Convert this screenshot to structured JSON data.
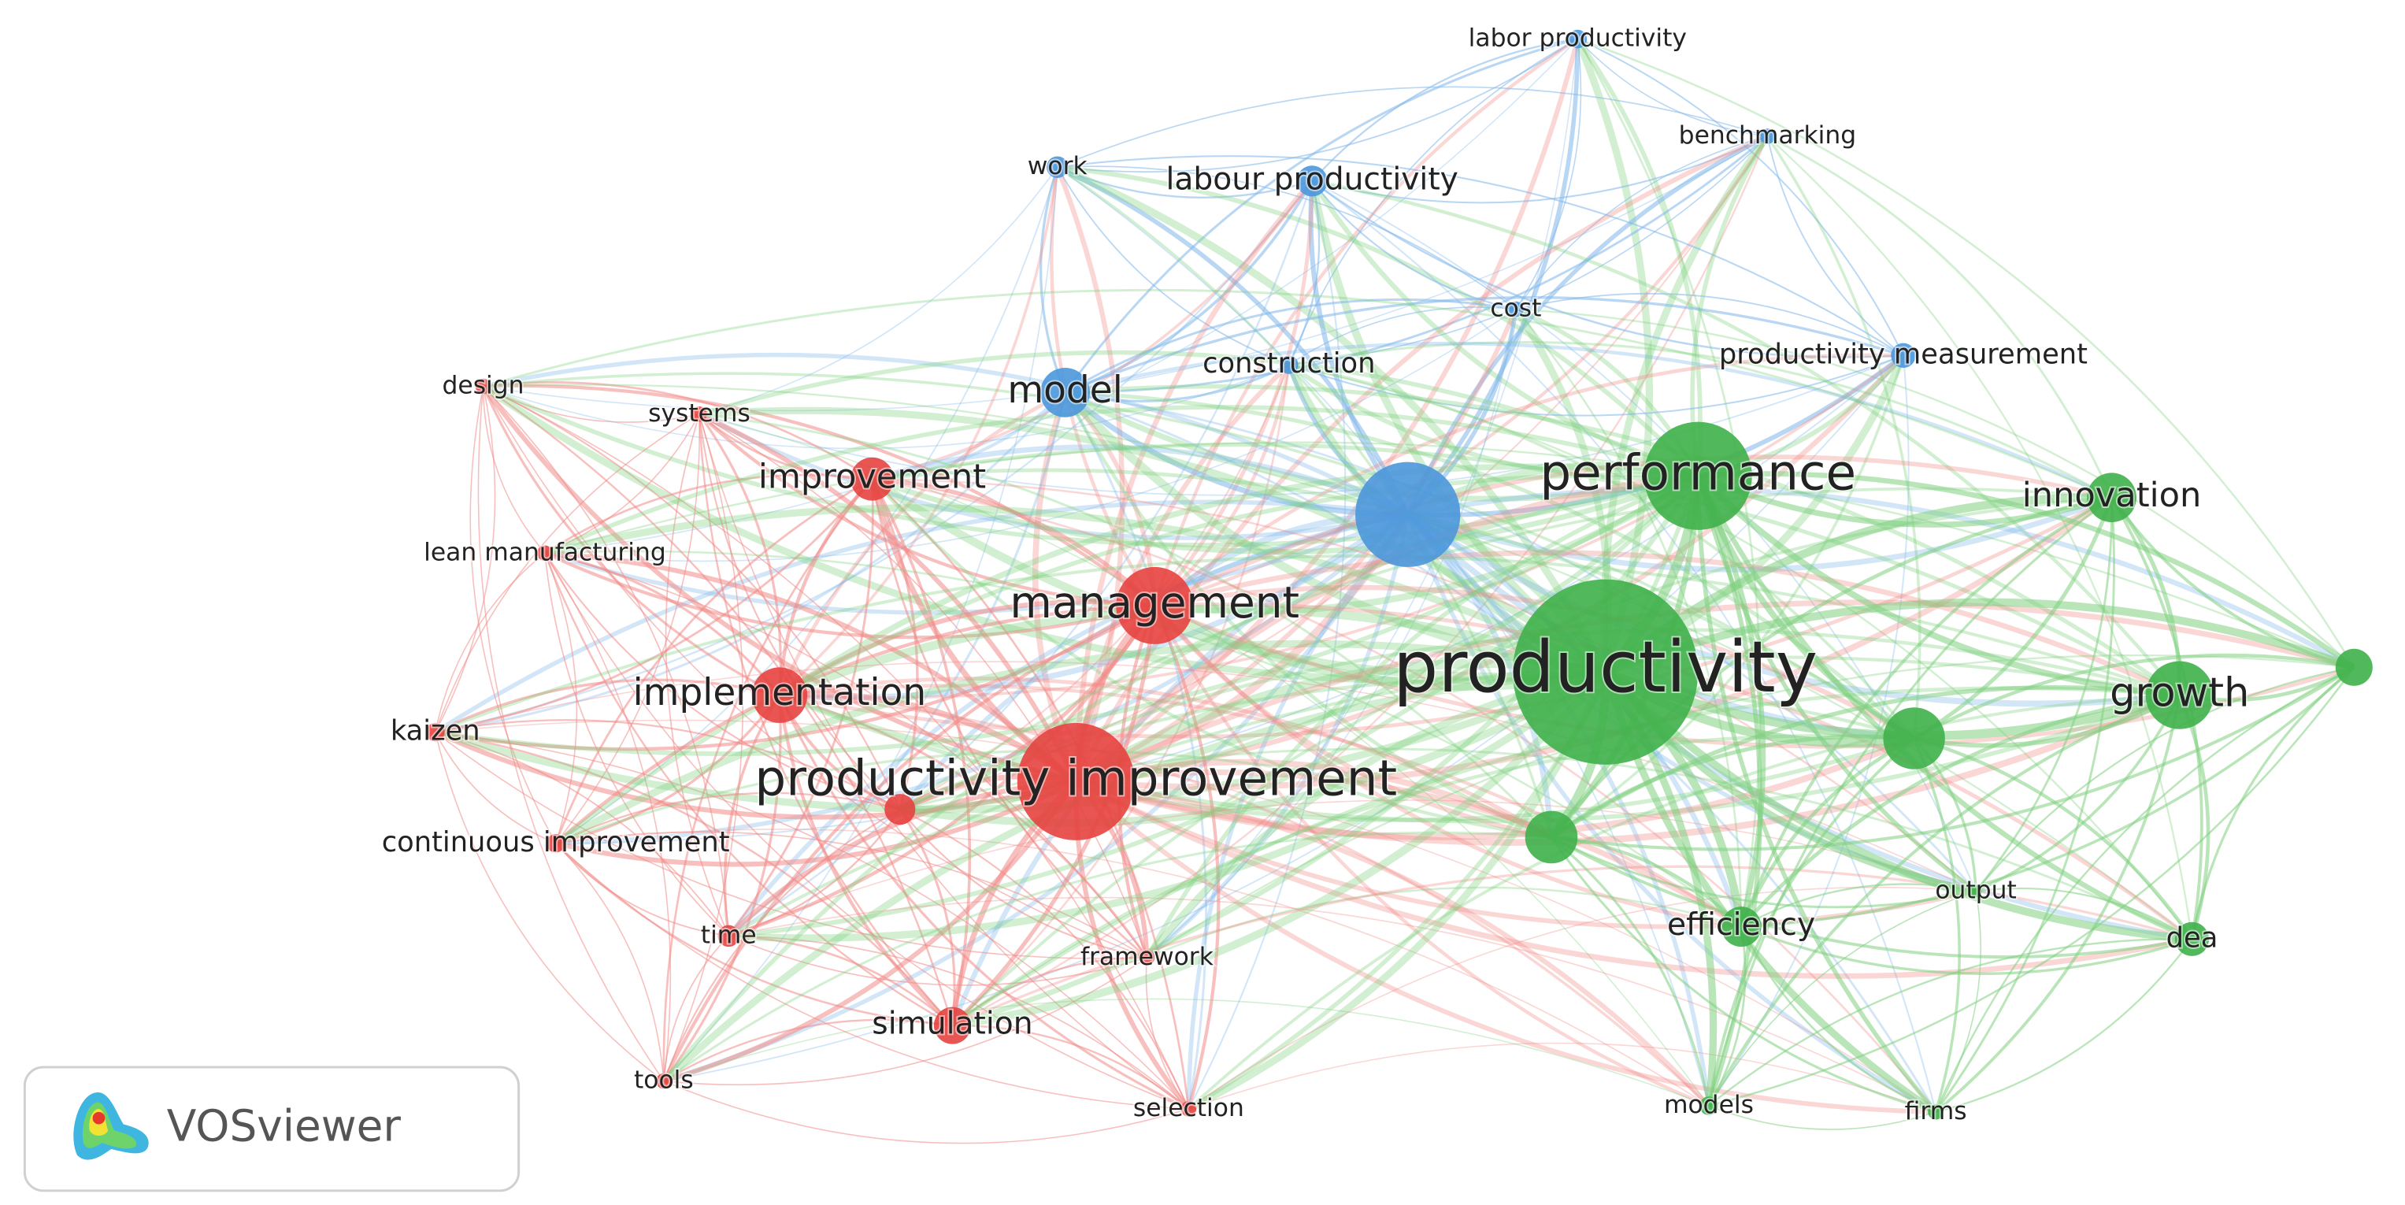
{
  "nodes": [
    {
      "label": "labor productivity"
    },
    {
      "label": "benchmarking"
    },
    {
      "label": "work"
    },
    {
      "label": "labour productivity"
    },
    {
      "label": "cost"
    },
    {
      "label": "construction"
    },
    {
      "label": "productivity measurement"
    },
    {
      "label": "model"
    },
    {
      "label": "design"
    },
    {
      "label": "systems"
    },
    {
      "label": "improvement"
    },
    {
      "label": "lean manufacturing"
    },
    {
      "label": "management"
    },
    {
      "label": "implementation"
    },
    {
      "label": "kaizen"
    },
    {
      "label": "productivity improvement"
    },
    {
      "label": "continuous improvement"
    },
    {
      "label": "time"
    },
    {
      "label": "framework"
    },
    {
      "label": "simulation"
    },
    {
      "label": "tools"
    },
    {
      "label": "selection"
    },
    {
      "label": "performance"
    },
    {
      "label": "innovation"
    },
    {
      "label": "productivity"
    },
    {
      "label": "growth"
    },
    {
      "label": "output"
    },
    {
      "label": "efficiency"
    },
    {
      "label": "dea"
    },
    {
      "label": "models"
    },
    {
      "label": "firms"
    }
  ],
  "logo": "VOSviewer"
}
